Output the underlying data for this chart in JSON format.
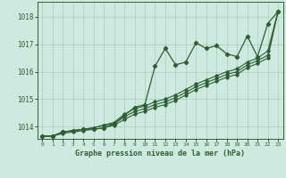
{
  "title": "Graphe pression niveau de la mer (hPa)",
  "background_color": "#ceeae0",
  "grid_color": "#aaccbb",
  "line_color": "#2d6030",
  "xlim": [
    -0.5,
    23.5
  ],
  "ylim": [
    1013.55,
    1018.55
  ],
  "yticks": [
    1014,
    1015,
    1016,
    1017,
    1018
  ],
  "xticks": [
    0,
    1,
    2,
    3,
    4,
    5,
    6,
    7,
    8,
    9,
    10,
    11,
    12,
    13,
    14,
    15,
    16,
    17,
    18,
    19,
    20,
    21,
    22,
    23
  ],
  "series": [
    [
      1013.65,
      1013.65,
      1013.8,
      1013.85,
      1013.9,
      1013.9,
      1013.95,
      1014.1,
      1014.4,
      1014.7,
      1014.8,
      1016.2,
      1016.85,
      1016.25,
      1016.35,
      1017.05,
      1016.85,
      1016.95,
      1016.65,
      1016.55,
      1017.3,
      1016.55,
      1017.75,
      1018.2
    ],
    [
      1013.65,
      1013.65,
      1013.8,
      1013.85,
      1013.9,
      1013.95,
      1014.05,
      1014.15,
      1014.45,
      1014.65,
      1014.75,
      1014.9,
      1015.0,
      1015.15,
      1015.35,
      1015.55,
      1015.7,
      1015.85,
      1016.0,
      1016.1,
      1016.35,
      1016.5,
      1016.75,
      1018.2
    ],
    [
      1013.65,
      1013.65,
      1013.8,
      1013.85,
      1013.9,
      1013.95,
      1014.05,
      1014.1,
      1014.35,
      1014.55,
      1014.65,
      1014.8,
      1014.9,
      1015.05,
      1015.25,
      1015.45,
      1015.6,
      1015.75,
      1015.9,
      1016.0,
      1016.25,
      1016.4,
      1016.6,
      1018.2
    ],
    [
      1013.65,
      1013.65,
      1013.75,
      1013.8,
      1013.85,
      1013.9,
      1013.95,
      1014.05,
      1014.25,
      1014.45,
      1014.55,
      1014.7,
      1014.8,
      1014.95,
      1015.15,
      1015.35,
      1015.5,
      1015.65,
      1015.8,
      1015.9,
      1016.15,
      1016.3,
      1016.5,
      1018.2
    ]
  ]
}
